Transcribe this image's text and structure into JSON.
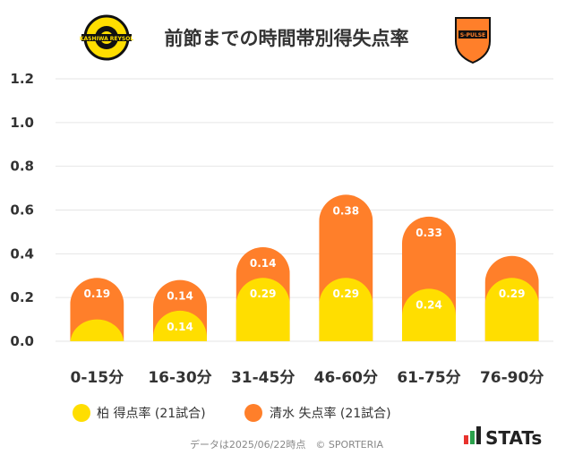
{
  "title": "前節までの時間帯別得失点率",
  "chart_data": {
    "type": "bar",
    "stacked": true,
    "categories": [
      "0-15分",
      "16-30分",
      "31-45分",
      "46-60分",
      "61-75分",
      "76-90分"
    ],
    "series": [
      {
        "name": "柏 得点率 (21試合)",
        "color": "#FFDE00",
        "values": [
          0.1,
          0.14,
          0.29,
          0.29,
          0.24,
          0.29
        ],
        "labels": [
          "",
          "0.14",
          "0.29",
          "0.29",
          "0.24",
          "0.29"
        ]
      },
      {
        "name": "清水 失点率 (21試合)",
        "color": "#FF7F2A",
        "values": [
          0.19,
          0.14,
          0.14,
          0.38,
          0.33,
          0.1
        ],
        "labels": [
          "0.19",
          "0.14",
          "0.14",
          "0.38",
          "0.33",
          ""
        ]
      }
    ],
    "yticks": [
      "0.0",
      "0.2",
      "0.4",
      "0.6",
      "0.8",
      "1.0",
      "1.2"
    ],
    "ylim": [
      0,
      1.2
    ],
    "grid": true,
    "legend": "bottom"
  },
  "logos": {
    "left_text": "KASHIWA REYSOL",
    "right_text": "S-PULSE"
  },
  "footer": "データは2025/06/22時点　© SPORTERIA",
  "brand": "STATs",
  "colors": {
    "home": "#FFDE00",
    "away": "#FF7F2A",
    "grid": "#e6e6e6",
    "text": "#333333"
  }
}
